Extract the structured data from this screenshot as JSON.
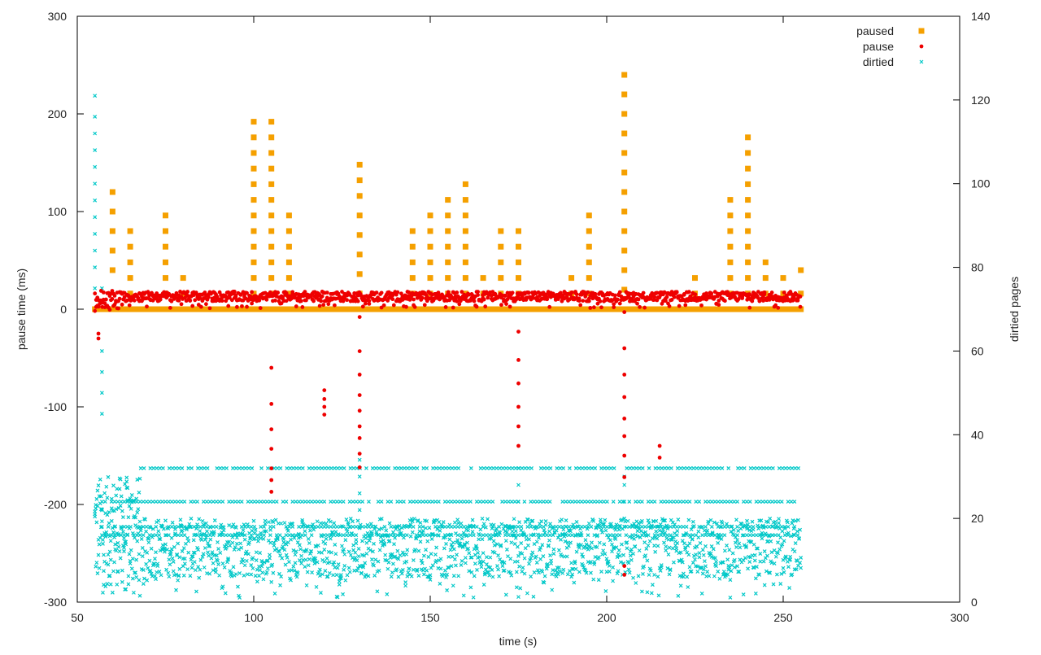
{
  "chart_data": {
    "type": "scatter",
    "title": "",
    "xlabel": "time (s)",
    "ylabel": "pause time (ms)",
    "y2label": "dirtied pages",
    "xlim": [
      50,
      300
    ],
    "ylim": [
      -300,
      300
    ],
    "y2lim": [
      0,
      140
    ],
    "xticks": [
      50,
      100,
      150,
      200,
      250,
      300
    ],
    "yticks": [
      -300,
      -200,
      -100,
      0,
      100,
      200,
      300
    ],
    "y2ticks": [
      0,
      20,
      40,
      60,
      80,
      100,
      120,
      140
    ],
    "grid": false,
    "legend_position": "top-right",
    "series": [
      {
        "name": "paused",
        "color": "#f5a000",
        "marker": "square",
        "axis": "y",
        "baseline": {
          "x_range": [
            55,
            255
          ],
          "y": 0
        },
        "spikes": [
          {
            "x": 60,
            "values": [
              40,
              60,
              80,
              100,
              120
            ]
          },
          {
            "x": 65,
            "values": [
              16,
              32,
              48,
              64,
              80
            ]
          },
          {
            "x": 75,
            "values": [
              16,
              32,
              48,
              64,
              80,
              96
            ]
          },
          {
            "x": 80,
            "values": [
              16,
              32
            ]
          },
          {
            "x": 100,
            "values": [
              16,
              32,
              48,
              64,
              80,
              96,
              112,
              128,
              144,
              160,
              176,
              192
            ]
          },
          {
            "x": 105,
            "values": [
              16,
              32,
              48,
              64,
              80,
              96,
              112,
              128,
              144,
              160,
              176,
              192
            ]
          },
          {
            "x": 110,
            "values": [
              16,
              32,
              48,
              64,
              80,
              96
            ]
          },
          {
            "x": 130,
            "values": [
              16,
              36,
              56,
              76,
              96,
              116,
              132,
              148
            ]
          },
          {
            "x": 145,
            "values": [
              16,
              32,
              48,
              64,
              80
            ]
          },
          {
            "x": 150,
            "values": [
              16,
              32,
              48,
              64,
              80,
              96
            ]
          },
          {
            "x": 155,
            "values": [
              16,
              32,
              48,
              64,
              80,
              96,
              112
            ]
          },
          {
            "x": 160,
            "values": [
              16,
              32,
              48,
              64,
              80,
              96,
              112,
              128
            ]
          },
          {
            "x": 165,
            "values": [
              16,
              32
            ]
          },
          {
            "x": 170,
            "values": [
              16,
              32,
              48,
              64,
              80
            ]
          },
          {
            "x": 175,
            "values": [
              16,
              32,
              48,
              64,
              80
            ]
          },
          {
            "x": 190,
            "values": [
              16,
              32
            ]
          },
          {
            "x": 195,
            "values": [
              16,
              32,
              48,
              64,
              80,
              96
            ]
          },
          {
            "x": 205,
            "values": [
              20,
              40,
              60,
              80,
              100,
              120,
              140,
              160,
              180,
              200,
              220,
              240
            ]
          },
          {
            "x": 225,
            "values": [
              16,
              32
            ]
          },
          {
            "x": 235,
            "values": [
              16,
              32,
              48,
              64,
              80,
              96,
              112
            ]
          },
          {
            "x": 240,
            "values": [
              16,
              32,
              48,
              64,
              80,
              96,
              112,
              128,
              144,
              160,
              176
            ]
          },
          {
            "x": 245,
            "values": [
              16,
              32,
              48
            ]
          },
          {
            "x": 250,
            "values": [
              16,
              32
            ]
          },
          {
            "x": 255,
            "values": [
              16,
              40
            ]
          }
        ]
      },
      {
        "name": "pause",
        "color": "#ee0000",
        "marker": "dot",
        "axis": "y",
        "band": {
          "x_range": [
            55,
            255
          ],
          "y_range": [
            8,
            18
          ]
        },
        "outliers": [
          {
            "x": 56,
            "values": [
              -25,
              -30
            ]
          },
          {
            "x": 105,
            "values": [
              -60,
              -97,
              -123,
              -143,
              -163,
              -175,
              -187
            ]
          },
          {
            "x": 120,
            "values": [
              -83,
              -92,
              -100,
              -108
            ]
          },
          {
            "x": 130,
            "values": [
              -8,
              -43,
              -67,
              -88,
              -104,
              -120,
              -132,
              -148,
              -162
            ]
          },
          {
            "x": 175,
            "values": [
              -23,
              -52,
              -76,
              -100,
              -120,
              -140
            ]
          },
          {
            "x": 205,
            "values": [
              -3,
              -40,
              -67,
              -90,
              -112,
              -130,
              -150,
              -172,
              -263,
              -272
            ]
          },
          {
            "x": 215,
            "values": [
              -140,
              -152
            ]
          }
        ]
      },
      {
        "name": "dirtied",
        "color": "#00c8c8",
        "marker": "x",
        "axis": "y2",
        "band": {
          "x_range": [
            55,
            255
          ],
          "y_range": [
            6,
            20
          ]
        },
        "lines": [
          32,
          24,
          18,
          16
        ],
        "spikes": [
          {
            "x": 55,
            "values": [
              70,
              75,
              80,
              84,
              88,
              92,
              96,
              100,
              104,
              108,
              112,
              116,
              121
            ]
          },
          {
            "x": 57,
            "values": [
              45,
              50,
              55,
              60,
              75
            ]
          },
          {
            "x": 130,
            "values": [
              22,
              26,
              30,
              34
            ]
          },
          {
            "x": 175,
            "values": [
              24,
              28,
              32
            ]
          },
          {
            "x": 205,
            "values": [
              20,
              24,
              28,
              30
            ]
          }
        ]
      }
    ]
  }
}
